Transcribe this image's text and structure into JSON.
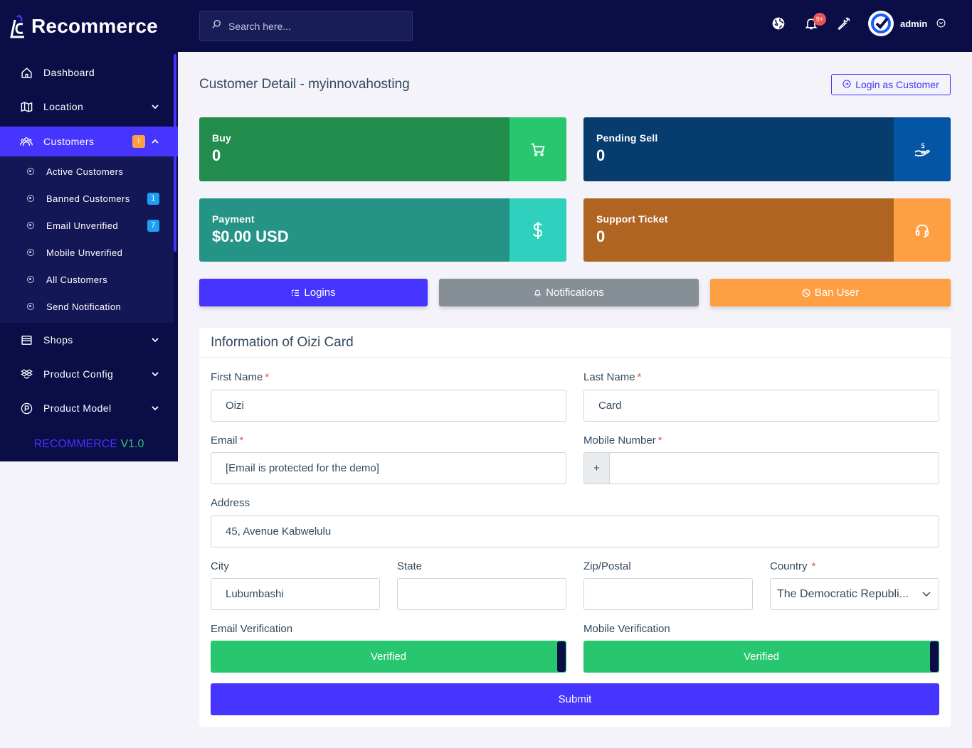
{
  "brand": {
    "name": "Recommerce"
  },
  "sidebar": {
    "items": [
      {
        "label": "Dashboard",
        "icon": "home-icon"
      },
      {
        "label": "Location",
        "icon": "map-icon"
      },
      {
        "label": "Customers",
        "icon": "users-icon",
        "badge": "!"
      },
      {
        "label": "Shops",
        "icon": "shop-icon"
      },
      {
        "label": "Product Config",
        "icon": "dropbox-icon"
      },
      {
        "label": "Product Model",
        "icon": "product-p-icon"
      }
    ],
    "customers_sub": [
      {
        "label": "Active Customers"
      },
      {
        "label": "Banned Customers",
        "badge": "1"
      },
      {
        "label": "Email Unverified",
        "badge": "7"
      },
      {
        "label": "Mobile Unverified"
      },
      {
        "label": "All Customers"
      },
      {
        "label": "Send Notification"
      }
    ],
    "version_name": "RECOMMERCE",
    "version_num": "V1.0"
  },
  "topbar": {
    "search_placeholder": "Search here...",
    "notification_count": "9+",
    "user_name": "admin"
  },
  "page": {
    "title": "Customer Detail - myinnovahosting",
    "login_as_customer": "Login as Customer"
  },
  "widgets": [
    {
      "label": "Buy",
      "value": "0",
      "color_body": "#218c4c",
      "color_icon": "#28c76f",
      "icon": "cart-icon"
    },
    {
      "label": "Pending Sell",
      "value": "0",
      "color_body": "#063c6e",
      "color_icon": "#0455a3",
      "icon": "hand-dollar-icon"
    },
    {
      "label": "Payment",
      "value": "$0.00 USD",
      "color_body": "#259385",
      "color_icon": "#2fd0be",
      "icon": "dollar-icon"
    },
    {
      "label": "Support Ticket",
      "value": "0",
      "color_body": "#b06422",
      "color_icon": "#ff9f43",
      "icon": "headset-icon"
    }
  ],
  "actions": {
    "logins": "Logins",
    "notifications": "Notifications",
    "ban_user": "Ban User"
  },
  "form": {
    "heading": "Information of Oizi Card",
    "first_name_label": "First Name",
    "first_name": "Oizi",
    "last_name_label": "Last Name",
    "last_name": "Card",
    "email_label": "Email",
    "email": "[Email is protected for the demo]",
    "mobile_label": "Mobile Number",
    "mobile_prefix": "+",
    "mobile": "",
    "address_label": "Address",
    "address": "45, Avenue Kabwelulu",
    "city_label": "City",
    "city": "Lubumbashi",
    "state_label": "State",
    "state": "",
    "zip_label": "Zip/Postal",
    "zip": "",
    "country_label": "Country",
    "country": "The Democratic Republi...",
    "email_verification_label": "Email Verification",
    "email_verification": "Verified",
    "mobile_verification_label": "Mobile Verification",
    "mobile_verification": "Verified",
    "submit": "Submit",
    "required_mark": "*"
  }
}
